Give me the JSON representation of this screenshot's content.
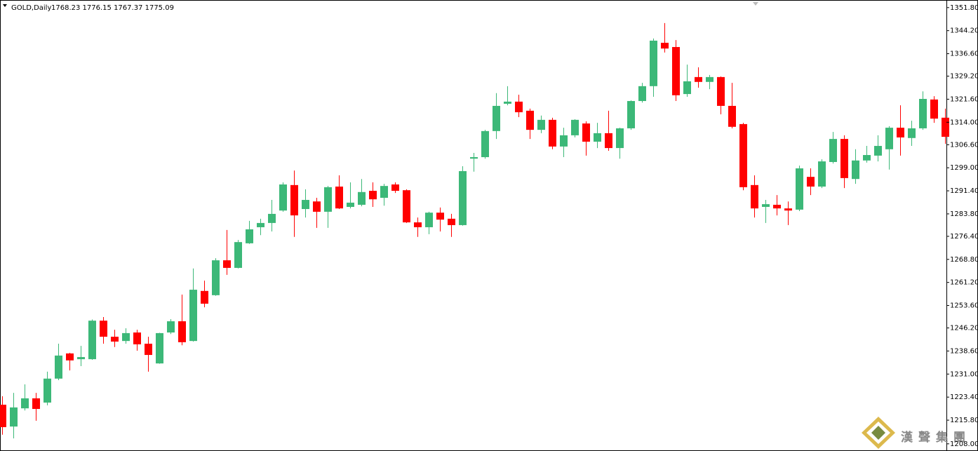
{
  "chart_data": {
    "type": "candlestick",
    "title": "GOLD,Daily",
    "ohlc_label": "1768.23 1776.15 1767.37 1775.09",
    "watermark": "漢聲集團",
    "up_color": "#3cb878",
    "down_color": "#ff0000",
    "open": [
      1220.9,
      1213.7,
      1219.7,
      1223.0,
      1221.6,
      1229.5,
      1237.8,
      1235.9,
      1235.9,
      1248.6,
      1243.3,
      1241.9,
      1244.7,
      1241.0,
      1234.5,
      1244.7,
      1248.4,
      1241.9,
      1258.4,
      1257.0,
      1268.5,
      1266.0,
      1274.1,
      1279.4,
      1280.8,
      1284.9,
      1293.3,
      1285.4,
      1287.9,
      1284.5,
      1292.8,
      1286.1,
      1286.8,
      1291.4,
      1289.1,
      1293.5,
      1291.6,
      1281.0,
      1279.4,
      1284.2,
      1282.2,
      1280.1,
      1302.0,
      1302.5,
      1311.1,
      1320.1,
      1320.8,
      1317.8,
      1311.5,
      1314.8,
      1306.0,
      1309.7,
      1313.6,
      1307.6,
      1310.4,
      1305.5,
      1312.0,
      1321.0,
      1325.9,
      1340.2,
      1338.8,
      1323.3,
      1328.9,
      1327.3,
      1328.9,
      1319.4,
      1313.4,
      1293.3,
      1286.1,
      1286.8,
      1285.6,
      1285.2,
      1296.0,
      1292.8,
      1300.9,
      1308.5,
      1295.3,
      1301.4,
      1303.0,
      1305.1,
      1312.2,
      1308.8,
      1312.0,
      1321.5,
      1315.5
    ],
    "high": [
      1223.7,
      1224.8,
      1227.6,
      1224.8,
      1231.8,
      1241.0,
      1238.0,
      1240.3,
      1249.0,
      1249.8,
      1245.6,
      1246.1,
      1245.6,
      1243.3,
      1244.6,
      1249.1,
      1257.2,
      1265.8,
      1261.8,
      1269.2,
      1278.5,
      1275.2,
      1281.5,
      1282.2,
      1288.4,
      1294.2,
      1298.1,
      1291.9,
      1289.1,
      1293.0,
      1296.5,
      1294.2,
      1295.3,
      1294.2,
      1293.7,
      1294.2,
      1291.9,
      1282.6,
      1284.5,
      1285.9,
      1283.8,
      1299.5,
      1303.9,
      1311.5,
      1323.6,
      1325.9,
      1323.1,
      1318.5,
      1316.2,
      1315.5,
      1312.2,
      1315.0,
      1314.3,
      1313.8,
      1317.8,
      1312.2,
      1321.2,
      1327.0,
      1341.6,
      1346.7,
      1341.1,
      1333.0,
      1332.1,
      1329.6,
      1329.1,
      1327.0,
      1313.8,
      1296.5,
      1288.4,
      1290.0,
      1287.9,
      1299.7,
      1298.8,
      1301.8,
      1310.8,
      1309.7,
      1305.1,
      1306.2,
      1309.7,
      1312.7,
      1319.6,
      1314.5,
      1324.2,
      1322.6,
      1318.5
    ],
    "low": [
      1211.0,
      1209.8,
      1219.0,
      1215.6,
      1220.7,
      1229.0,
      1232.2,
      1233.6,
      1235.7,
      1241.0,
      1239.9,
      1241.0,
      1238.7,
      1231.8,
      1234.4,
      1244.2,
      1240.5,
      1241.7,
      1253.0,
      1256.8,
      1263.7,
      1265.8,
      1273.9,
      1276.8,
      1278.0,
      1284.5,
      1276.2,
      1282.6,
      1279.2,
      1279.2,
      1285.4,
      1285.6,
      1286.3,
      1286.1,
      1286.5,
      1290.7,
      1280.8,
      1276.2,
      1277.1,
      1278.0,
      1276.2,
      1279.9,
      1297.7,
      1302.0,
      1308.5,
      1319.6,
      1315.7,
      1308.5,
      1310.4,
      1305.1,
      1302.5,
      1309.0,
      1303.0,
      1305.5,
      1304.6,
      1302.0,
      1311.5,
      1320.5,
      1322.4,
      1337.0,
      1321.0,
      1322.4,
      1325.4,
      1324.9,
      1316.6,
      1312.0,
      1291.6,
      1282.6,
      1280.8,
      1283.3,
      1280.1,
      1284.7,
      1290.0,
      1292.3,
      1300.4,
      1292.3,
      1293.7,
      1300.7,
      1301.1,
      1298.4,
      1303.0,
      1306.2,
      1311.5,
      1313.8,
      1306.9
    ],
    "close": [
      1213.5,
      1220.0,
      1223.0,
      1219.5,
      1229.5,
      1237.1,
      1235.5,
      1236.6,
      1248.6,
      1243.3,
      1241.7,
      1244.5,
      1240.8,
      1237.3,
      1244.5,
      1248.4,
      1241.5,
      1258.8,
      1254.2,
      1268.5,
      1266.0,
      1274.5,
      1278.7,
      1280.8,
      1283.8,
      1293.5,
      1283.3,
      1288.4,
      1284.5,
      1292.6,
      1285.6,
      1287.5,
      1291.0,
      1288.6,
      1293.0,
      1291.4,
      1281.0,
      1279.4,
      1284.2,
      1281.9,
      1280.1,
      1297.9,
      1302.5,
      1311.1,
      1319.4,
      1320.8,
      1317.3,
      1311.5,
      1314.8,
      1306.0,
      1309.7,
      1314.8,
      1307.6,
      1310.4,
      1305.5,
      1312.0,
      1321.0,
      1325.9,
      1340.9,
      1338.3,
      1322.9,
      1327.5,
      1327.3,
      1328.9,
      1319.4,
      1312.5,
      1292.6,
      1285.6,
      1287.0,
      1285.6,
      1284.9,
      1298.8,
      1292.8,
      1301.1,
      1308.5,
      1295.6,
      1301.4,
      1303.2,
      1306.2,
      1312.2,
      1309.0,
      1312.0,
      1321.7,
      1315.2,
      1309.2
    ],
    "ylim": [
      1206.1,
      1354.3
    ],
    "yticks": [
      {
        "value": 1351.8,
        "label": "1351.80"
      },
      {
        "value": 1344.2,
        "label": "1344.20"
      },
      {
        "value": 1336.6,
        "label": "1336.60"
      },
      {
        "value": 1329.2,
        "label": "1329.20"
      },
      {
        "value": 1321.6,
        "label": "1321.60"
      },
      {
        "value": 1314.0,
        "label": "1314.00"
      },
      {
        "value": 1306.6,
        "label": "1306.60"
      },
      {
        "value": 1299.0,
        "label": "1299.00"
      },
      {
        "value": 1291.4,
        "label": "1291.40"
      },
      {
        "value": 1283.8,
        "label": "1283.80"
      },
      {
        "value": 1276.4,
        "label": "1276.40"
      },
      {
        "value": 1268.8,
        "label": "1268.80"
      },
      {
        "value": 1261.2,
        "label": "1261.20"
      },
      {
        "value": 1253.6,
        "label": "1253.60"
      },
      {
        "value": 1246.2,
        "label": "1246.20"
      },
      {
        "value": 1238.6,
        "label": "1238.60"
      },
      {
        "value": 1231.0,
        "label": "1231.00"
      },
      {
        "value": 1223.4,
        "label": "1223.40"
      },
      {
        "value": 1215.8,
        "label": "1215.80"
      },
      {
        "value": 1208.0,
        "label": "1208.00"
      }
    ],
    "grid": false
  }
}
